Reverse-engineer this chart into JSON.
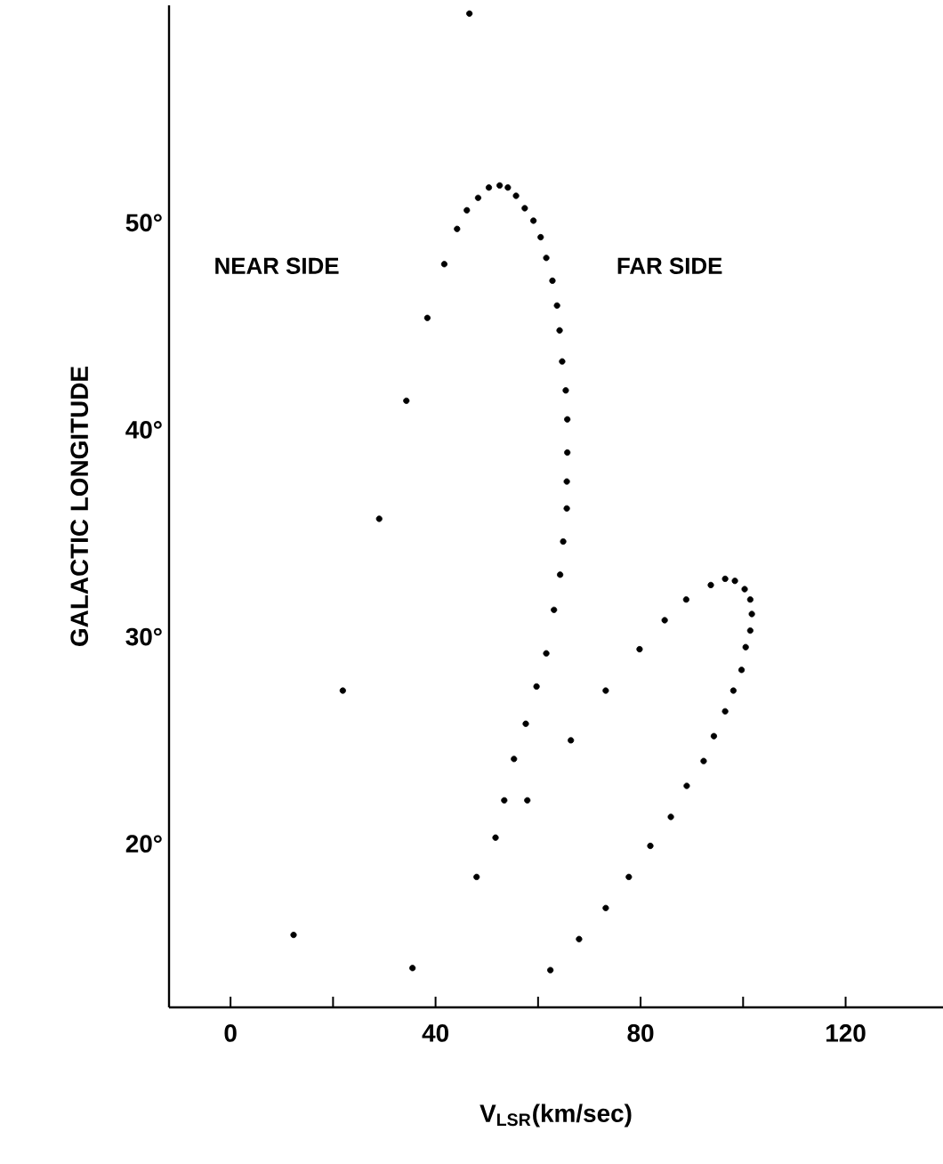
{
  "chart_data": {
    "type": "scatter",
    "xlabel": "V$_{LSR}$(km/sec)",
    "ylabel": "GALACTIC LONGITUDE",
    "annotations": [
      "NEAR SIDE",
      "FAR SIDE"
    ],
    "xlim": [
      -12,
      139
    ],
    "ylim": [
      12.1,
      60.5
    ],
    "xticks": [
      0,
      {
        "value": 20,
        "label": null
      },
      40,
      {
        "value": 60,
        "label": null
      },
      80,
      {
        "value": 100,
        "label": null
      },
      120
    ],
    "yticks": [
      {
        "value": 20,
        "label": "20°"
      },
      {
        "value": 30,
        "label": "30°"
      },
      {
        "value": 40,
        "label": "40°"
      },
      {
        "value": 50,
        "label": "50°"
      }
    ],
    "marker": "circle",
    "grid": false,
    "series": [
      {
        "color": "#000000",
        "x": [
          46.6,
          12.3,
          21.9,
          29.0,
          34.3,
          38.4,
          41.7,
          44.2,
          46.1,
          48.3,
          50.4,
          52.5,
          54.1,
          55.7,
          57.4,
          59.1,
          60.5,
          61.6,
          62.8,
          63.7,
          64.2,
          64.7,
          65.4,
          65.7,
          65.7,
          65.6,
          65.6,
          64.9,
          64.3,
          63.1,
          61.6,
          59.7,
          57.6,
          55.3,
          53.4,
          51.7,
          48.0,
          35.5,
          57.9,
          66.4,
          73.2,
          62.4,
          68.0,
          73.2,
          77.7,
          81.9,
          85.9,
          89.0,
          92.3,
          94.3,
          96.5,
          98.1,
          99.7,
          100.5,
          101.4,
          101.7,
          101.4,
          100.3,
          98.4,
          96.5,
          93.7,
          88.9,
          84.7,
          79.8
        ],
        "values": [
          60.1,
          15.6,
          27.4,
          35.7,
          41.4,
          45.4,
          48.0,
          49.7,
          50.6,
          51.2,
          51.7,
          51.8,
          51.7,
          51.3,
          50.7,
          50.1,
          49.3,
          48.3,
          47.2,
          46.0,
          44.8,
          43.3,
          41.9,
          40.5,
          38.9,
          37.5,
          36.2,
          34.6,
          33.0,
          31.3,
          29.2,
          27.6,
          25.8,
          24.1,
          22.1,
          20.3,
          18.4,
          14.0,
          22.1,
          25.0,
          27.4,
          13.9,
          15.4,
          16.9,
          18.4,
          19.9,
          21.3,
          22.8,
          24.0,
          25.2,
          26.4,
          27.4,
          28.4,
          29.5,
          30.3,
          31.1,
          31.8,
          32.3,
          32.7,
          32.8,
          32.5,
          31.8,
          30.8,
          29.4
        ]
      }
    ]
  }
}
